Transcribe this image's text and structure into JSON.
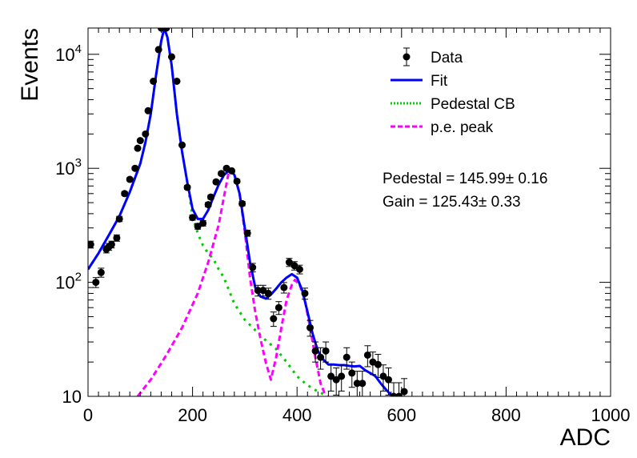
{
  "chart_data": {
    "type": "scatter",
    "title": "",
    "xlabel": "ADC",
    "ylabel": "Events",
    "xlim": [
      0,
      1000
    ],
    "ylim": [
      10,
      17000
    ],
    "yscale": "log",
    "x_ticks": [
      "0",
      "200",
      "400",
      "600",
      "800",
      "1000"
    ],
    "y_ticks": [
      {
        "value": 10,
        "base": "10",
        "exp": ""
      },
      {
        "value": 100,
        "base": "10",
        "exp": "2"
      },
      {
        "value": 1000,
        "base": "10",
        "exp": "3"
      },
      {
        "value": 10000,
        "base": "10",
        "exp": "4"
      }
    ],
    "legend": {
      "position": "top-right",
      "entries": [
        {
          "label": "Data",
          "style": "marker",
          "color": "#000000"
        },
        {
          "label": "Fit",
          "style": "solid",
          "color": "#0000ff"
        },
        {
          "label": "Pedestal CB",
          "style": "dotted",
          "color": "#00cc00"
        },
        {
          "label": "p.e. peak",
          "style": "dashed",
          "color": "#ff00ff"
        }
      ]
    },
    "annotations": [
      {
        "text": "Pedestal = 145.99",
        "pm": "±",
        "err": "0.16"
      },
      {
        "text": "Gain = 125.43",
        "pm": "±",
        "err": "0.33"
      }
    ],
    "series": [
      {
        "name": "Data",
        "kind": "points",
        "color": "#000000",
        "points": [
          [
            5,
            215
          ],
          [
            15,
            100
          ],
          [
            25,
            122
          ],
          [
            35,
            195
          ],
          [
            40,
            205
          ],
          [
            45,
            215
          ],
          [
            55,
            245
          ],
          [
            60,
            360
          ],
          [
            70,
            600
          ],
          [
            80,
            800
          ],
          [
            90,
            1000
          ],
          [
            95,
            1500
          ],
          [
            100,
            1750
          ],
          [
            110,
            2000
          ],
          [
            115,
            3200
          ],
          [
            125,
            5800
          ],
          [
            135,
            11000
          ],
          [
            140,
            17000
          ],
          [
            150,
            17000
          ],
          [
            160,
            9500
          ],
          [
            170,
            5800
          ],
          [
            180,
            1600
          ],
          [
            190,
            680
          ],
          [
            200,
            370
          ],
          [
            210,
            310
          ],
          [
            220,
            330
          ],
          [
            230,
            480
          ],
          [
            235,
            560
          ],
          [
            245,
            760
          ],
          [
            255,
            900
          ],
          [
            265,
            1000
          ],
          [
            275,
            950
          ],
          [
            285,
            770
          ],
          [
            295,
            490
          ],
          [
            305,
            270
          ],
          [
            315,
            135
          ],
          [
            325,
            85
          ],
          [
            335,
            85
          ],
          [
            345,
            80
          ],
          [
            355,
            48
          ],
          [
            365,
            60
          ],
          [
            375,
            90
          ],
          [
            385,
            150
          ],
          [
            395,
            140
          ],
          [
            405,
            130
          ],
          [
            415,
            80
          ],
          [
            425,
            40
          ],
          [
            435,
            25
          ],
          [
            445,
            22
          ],
          [
            455,
            25
          ],
          [
            465,
            15
          ],
          [
            475,
            14
          ],
          [
            485,
            15
          ],
          [
            495,
            22
          ],
          [
            505,
            16
          ],
          [
            515,
            13
          ],
          [
            525,
            13
          ],
          [
            535,
            23
          ],
          [
            545,
            20
          ],
          [
            555,
            19
          ],
          [
            565,
            15
          ],
          [
            575,
            14
          ],
          [
            585,
            10
          ],
          [
            595,
            10
          ],
          [
            605,
            11
          ]
        ]
      },
      {
        "name": "Fit",
        "kind": "line",
        "color": "#0000ff",
        "points": [
          [
            0,
            130
          ],
          [
            20,
            180
          ],
          [
            40,
            260
          ],
          [
            60,
            380
          ],
          [
            80,
            620
          ],
          [
            100,
            1100
          ],
          [
            110,
            1700
          ],
          [
            120,
            3000
          ],
          [
            130,
            6500
          ],
          [
            140,
            13000
          ],
          [
            146,
            17000
          ],
          [
            152,
            14000
          ],
          [
            160,
            8000
          ],
          [
            170,
            3000
          ],
          [
            180,
            1400
          ],
          [
            190,
            750
          ],
          [
            200,
            440
          ],
          [
            210,
            360
          ],
          [
            220,
            360
          ],
          [
            230,
            430
          ],
          [
            240,
            560
          ],
          [
            250,
            720
          ],
          [
            260,
            870
          ],
          [
            270,
            960
          ],
          [
            280,
            880
          ],
          [
            290,
            600
          ],
          [
            300,
            300
          ],
          [
            310,
            150
          ],
          [
            320,
            90
          ],
          [
            330,
            75
          ],
          [
            340,
            72
          ],
          [
            350,
            78
          ],
          [
            360,
            88
          ],
          [
            370,
            100
          ],
          [
            380,
            110
          ],
          [
            390,
            118
          ],
          [
            400,
            110
          ],
          [
            410,
            85
          ],
          [
            420,
            55
          ],
          [
            430,
            35
          ],
          [
            440,
            25
          ],
          [
            450,
            21
          ],
          [
            460,
            19
          ],
          [
            470,
            19
          ],
          [
            480,
            18.8
          ],
          [
            490,
            18.8
          ],
          [
            500,
            18.5
          ],
          [
            510,
            18.3
          ],
          [
            520,
            18.5
          ],
          [
            530,
            17
          ],
          [
            540,
            16
          ],
          [
            550,
            15
          ],
          [
            560,
            13
          ],
          [
            570,
            11.5
          ],
          [
            580,
            10.3
          ],
          [
            590,
            10
          ]
        ]
      },
      {
        "name": "Pedestal CB",
        "kind": "line",
        "color": "#00cc00",
        "points": [
          [
            0,
            130
          ],
          [
            20,
            180
          ],
          [
            40,
            260
          ],
          [
            60,
            380
          ],
          [
            80,
            620
          ],
          [
            100,
            1100
          ],
          [
            110,
            1700
          ],
          [
            120,
            3000
          ],
          [
            130,
            6500
          ],
          [
            140,
            13000
          ],
          [
            146,
            17000
          ],
          [
            152,
            14000
          ],
          [
            160,
            8000
          ],
          [
            170,
            3000
          ],
          [
            180,
            1400
          ],
          [
            190,
            750
          ],
          [
            200,
            380
          ],
          [
            210,
            270
          ],
          [
            220,
            210
          ],
          [
            230,
            180
          ],
          [
            240,
            160
          ],
          [
            250,
            130
          ],
          [
            260,
            110
          ],
          [
            280,
            65
          ],
          [
            300,
            47
          ],
          [
            320,
            38
          ],
          [
            340,
            31
          ],
          [
            360,
            26
          ],
          [
            380,
            20
          ],
          [
            400,
            15
          ],
          [
            420,
            12.5
          ],
          [
            440,
            11
          ],
          [
            460,
            10
          ]
        ]
      },
      {
        "name": "p.e. peak",
        "kind": "line",
        "color": "#ff00ff",
        "points": [
          [
            95,
            10
          ],
          [
            120,
            14
          ],
          [
            150,
            23
          ],
          [
            180,
            40
          ],
          [
            210,
            80
          ],
          [
            230,
            150
          ],
          [
            250,
            320
          ],
          [
            260,
            560
          ],
          [
            270,
            960
          ],
          [
            280,
            890
          ],
          [
            290,
            600
          ],
          [
            300,
            280
          ],
          [
            310,
            110
          ],
          [
            320,
            55
          ],
          [
            330,
            32
          ],
          [
            340,
            20
          ],
          [
            350,
            14
          ],
          [
            360,
            22
          ],
          [
            370,
            40
          ],
          [
            380,
            70
          ],
          [
            390,
            95
          ],
          [
            396,
            105
          ],
          [
            405,
            95
          ],
          [
            415,
            70
          ],
          [
            425,
            40
          ],
          [
            435,
            22
          ],
          [
            445,
            13
          ],
          [
            455,
            10
          ]
        ]
      }
    ]
  }
}
